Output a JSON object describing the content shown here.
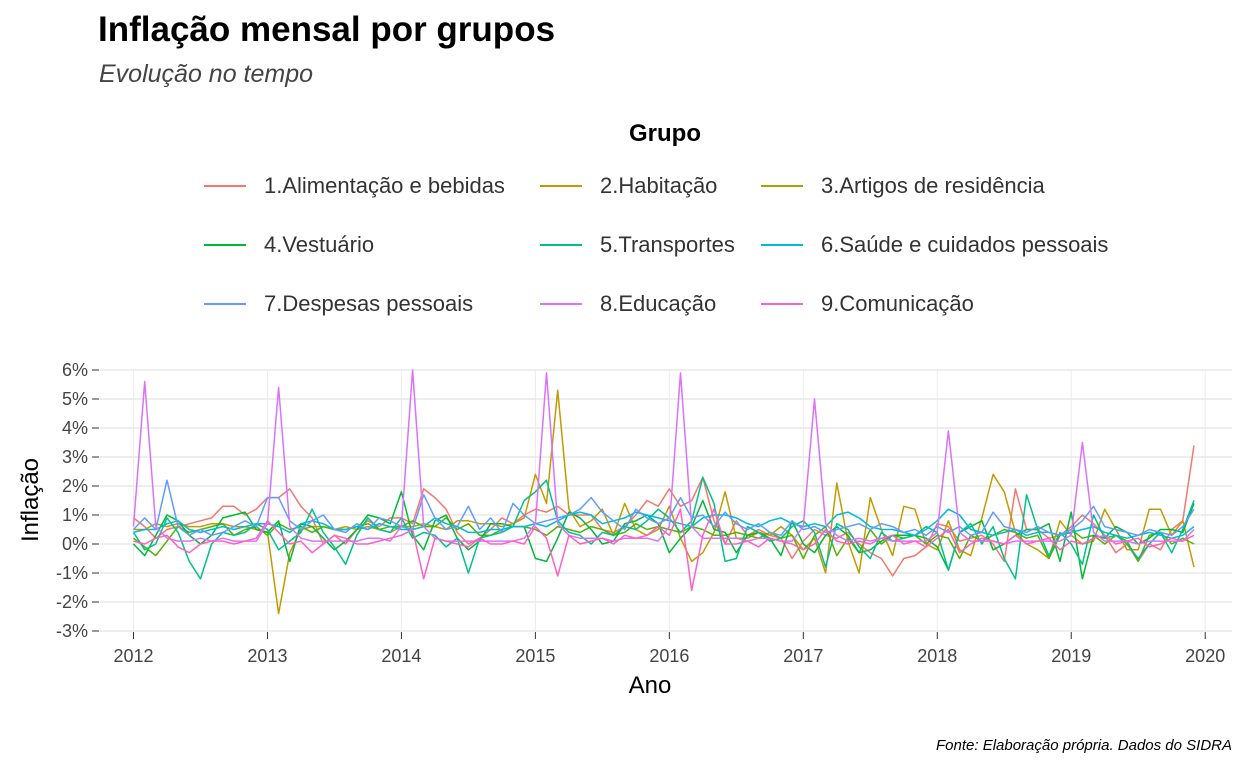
{
  "header": {
    "title": "Inflação mensal por grupos",
    "subtitle": "Evolução no tempo"
  },
  "caption": "Fonte: Elaboração própria. Dados do SIDRA",
  "chart_data": {
    "type": "line",
    "title": "Inflação mensal por grupos",
    "subtitle": "Evolução no tempo",
    "xlabel": "Ano",
    "ylabel": "Inflação",
    "legend_title": "Grupo",
    "legend_position": "top",
    "grid": true,
    "xlim": [
      2011.75,
      2020.2
    ],
    "ylim": [
      -3,
      6
    ],
    "x_ticks": [
      2012,
      2013,
      2014,
      2015,
      2016,
      2017,
      2018,
      2019,
      2020
    ],
    "x_tick_labels": [
      "2012",
      "2013",
      "2014",
      "2015",
      "2016",
      "2017",
      "2018",
      "2019",
      "2020"
    ],
    "y_ticks": [
      -3,
      -2,
      -1,
      0,
      1,
      2,
      3,
      4,
      5,
      6
    ],
    "y_tick_labels": [
      "-3%",
      "-2%",
      "-1%",
      "0%",
      "1%",
      "2%",
      "3%",
      "4%",
      "5%",
      "6%"
    ],
    "series": [
      {
        "name": "1.Alimentação e bebidas",
        "color": "#F8766D",
        "x_start": 2012.0,
        "x_step": 0.08333,
        "values": [
          0.9,
          0.6,
          0.2,
          0.5,
          0.6,
          0.7,
          0.8,
          0.9,
          1.3,
          1.3,
          1.0,
          1.2,
          1.6,
          1.6,
          1.9,
          1.3,
          0.9,
          0.0,
          0.3,
          0.0,
          0.5,
          0.8,
          0.6,
          0.9,
          0.9,
          0.7,
          1.9,
          1.6,
          1.2,
          0.4,
          0.0,
          0.2,
          0.5,
          0.9,
          0.7,
          1.0,
          1.2,
          1.1,
          1.3,
          1.0,
          1.0,
          1.0,
          0.5,
          0.4,
          0.6,
          1.0,
          1.5,
          1.3,
          1.9,
          1.3,
          1.5,
          2.3,
          0.8,
          0.0,
          0.8,
          0.3,
          0.5,
          0.3,
          0.2,
          -0.5,
          0.1,
          0.5,
          0.3,
          0.2,
          0.4,
          0.0,
          -0.3,
          -0.5,
          -1.1,
          -0.5,
          -0.4,
          -0.1,
          0.7,
          0.6,
          0.1,
          0.2,
          0.3,
          0.0,
          -0.6,
          1.9,
          0.5,
          0.5,
          0.2,
          0.3,
          0.6,
          1.0,
          0.7,
          0.3,
          -0.3,
          0.0,
          -0.6,
          0.0,
          -0.2,
          0.5,
          0.8,
          3.4
        ]
      },
      {
        "name": "2.Habitação",
        "color": "#C49A00",
        "x_start": 2012.0,
        "x_step": 0.08333,
        "values": [
          0.5,
          0.5,
          0.7,
          0.6,
          0.7,
          0.6,
          0.6,
          0.7,
          0.7,
          0.6,
          0.6,
          0.5,
          0.4,
          -2.4,
          -0.3,
          0.5,
          0.6,
          0.6,
          0.5,
          0.6,
          0.5,
          0.6,
          0.5,
          0.4,
          0.6,
          0.6,
          0.7,
          0.6,
          0.5,
          0.8,
          0.8,
          0.7,
          0.7,
          0.6,
          0.7,
          0.9,
          2.4,
          1.4,
          5.3,
          1.2,
          0.6,
          0.8,
          1.2,
          0.3,
          1.4,
          0.5,
          0.3,
          0.5,
          1.3,
          0.2,
          -0.6,
          -0.3,
          0.4,
          1.8,
          0.2,
          0.2,
          0.4,
          0.3,
          0.6,
          0.3,
          -0.2,
          0.2,
          -1.0,
          2.1,
          0.1,
          -1.0,
          1.6,
          0.5,
          -0.4,
          1.3,
          1.2,
          0.0,
          -0.2,
          0.8,
          -0.2,
          -0.4,
          0.9,
          2.4,
          1.8,
          0.4,
          0.0,
          -0.2,
          -0.5,
          0.8,
          0.3,
          0.0,
          0.1,
          1.2,
          0.5,
          -0.2,
          -0.2,
          1.2,
          1.2,
          0.3,
          0.8,
          -0.8
        ]
      },
      {
        "name": "3.Artigos de residência",
        "color": "#53B400",
        "x_start": 2012.0,
        "x_step": 0.08333,
        "values": [
          0.2,
          -0.1,
          -0.4,
          0.1,
          0.6,
          0.4,
          0.5,
          0.6,
          0.7,
          0.3,
          0.5,
          0.6,
          0.3,
          0.7,
          0.5,
          0.6,
          0.4,
          0.6,
          0.5,
          0.5,
          0.6,
          0.7,
          0.5,
          0.6,
          0.6,
          0.8,
          0.6,
          0.6,
          0.9,
          0.5,
          0.7,
          0.3,
          0.3,
          0.5,
          0.6,
          0.6,
          0.5,
          0.3,
          0.6,
          0.5,
          0.4,
          0.6,
          0.5,
          0.3,
          0.4,
          0.7,
          0.5,
          0.6,
          0.5,
          0.4,
          0.6,
          0.5,
          0.3,
          0.3,
          0.4,
          0.3,
          0.2,
          0.4,
          0.2,
          0.3,
          -0.5,
          0.3,
          0.6,
          -0.4,
          0.2,
          -0.3,
          0.5,
          0.0,
          0.3,
          0.2,
          0.3,
          0.0,
          0.3,
          0.2,
          -0.5,
          0.3,
          0.1,
          0.3,
          0.5,
          0.4,
          0.2,
          0.3,
          -0.5,
          0.3,
          0.5,
          0.2,
          0.3,
          0.0,
          0.3,
          0.1,
          -0.6,
          0.3,
          0.4,
          0.0,
          0.2,
          0.0
        ]
      },
      {
        "name": "4.Vestuário",
        "color": "#00B938",
        "x_start": 2012.0,
        "x_step": 0.08333,
        "values": [
          0.0,
          -0.4,
          0.3,
          1.0,
          0.8,
          0.3,
          0.0,
          0.3,
          0.9,
          1.0,
          1.1,
          0.5,
          0.4,
          0.8,
          -0.6,
          0.7,
          0.6,
          0.2,
          -0.2,
          0.1,
          0.5,
          1.0,
          0.9,
          0.7,
          1.8,
          0.3,
          -0.2,
          0.8,
          1.0,
          0.2,
          -0.2,
          0.1,
          0.7,
          0.7,
          0.6,
          0.6,
          -0.5,
          -0.6,
          0.2,
          1.1,
          0.9,
          0.5,
          0.0,
          0.1,
          0.7,
          0.8,
          1.0,
          0.7,
          -0.3,
          0.2,
          0.6,
          1.5,
          0.5,
          0.4,
          -0.3,
          0.3,
          0.4,
          0.2,
          -0.4,
          0.8,
          0.0,
          -0.3,
          0.3,
          0.6,
          0.3,
          -0.3,
          -0.2,
          0.1,
          0.3,
          0.3,
          0.3,
          0.2,
          -0.1,
          -0.9,
          0.4,
          0.6,
          0.8,
          -0.2,
          0.0,
          0.3,
          0.5,
          0.5,
          0.7,
          -0.6,
          1.1,
          -1.2,
          0.3,
          0.2,
          0.6,
          0.4,
          0.0,
          0.2,
          0.5,
          0.5,
          0.4,
          1.4
        ]
      },
      {
        "name": "5.Transportes",
        "color": "#00C08B",
        "x_start": 2012.0,
        "x_step": 0.08333,
        "values": [
          0.4,
          -0.2,
          0.0,
          0.9,
          0.4,
          -0.6,
          -1.2,
          0.0,
          0.4,
          0.3,
          0.4,
          0.7,
          0.5,
          -0.2,
          0.1,
          0.4,
          1.2,
          0.4,
          -0.1,
          -0.7,
          0.3,
          0.9,
          0.5,
          0.4,
          0.9,
          0.2,
          0.4,
          0.3,
          -0.1,
          0.2,
          -1.0,
          0.2,
          0.3,
          0.4,
          0.6,
          1.5,
          1.8,
          2.2,
          0.8,
          0.4,
          0.3,
          0.0,
          0.4,
          0.3,
          0.6,
          0.5,
          0.8,
          1.2,
          0.9,
          0.4,
          0.8,
          2.3,
          1.4,
          -0.6,
          -0.5,
          0.6,
          0.4,
          0.1,
          0.2,
          0.6,
          0.8,
          0.4,
          -0.8,
          0.7,
          0.5,
          -0.1,
          -0.5,
          0.4,
          0.1,
          0.2,
          0.3,
          0.6,
          0.4,
          -0.9,
          0.4,
          0.7,
          0.0,
          0.6,
          -0.5,
          -1.2,
          1.7,
          0.5,
          -0.4,
          0.4,
          0.0,
          -0.7,
          1.0,
          0.2,
          0.3,
          0.0,
          -0.5,
          0.0,
          0.4,
          -0.3,
          0.5,
          1.5
        ]
      },
      {
        "name": "6.Saúde e cuidados pessoais",
        "color": "#00BBDA",
        "x_start": 2012.0,
        "x_step": 0.08333,
        "values": [
          0.4,
          0.5,
          0.5,
          0.7,
          0.8,
          0.5,
          0.4,
          0.5,
          0.6,
          0.5,
          0.6,
          0.7,
          0.7,
          0.6,
          0.4,
          0.7,
          0.8,
          0.7,
          0.5,
          0.5,
          0.6,
          0.5,
          0.7,
          0.6,
          0.5,
          0.5,
          0.6,
          0.9,
          0.7,
          0.6,
          0.4,
          0.4,
          0.5,
          0.5,
          0.6,
          0.6,
          0.7,
          0.6,
          0.8,
          1.0,
          1.1,
          1.0,
          0.7,
          0.8,
          0.9,
          1.1,
          1.0,
          0.9,
          0.8,
          0.7,
          0.6,
          0.9,
          1.0,
          1.0,
          0.9,
          0.7,
          0.6,
          0.8,
          0.9,
          0.7,
          0.6,
          0.7,
          0.6,
          1.0,
          1.1,
          0.9,
          0.6,
          0.5,
          0.5,
          0.4,
          0.3,
          0.5,
          0.8,
          1.2,
          1.0,
          0.5,
          0.4,
          0.3,
          0.4,
          0.5,
          0.3,
          0.4,
          0.4,
          0.3,
          0.4,
          0.5,
          0.6,
          0.4,
          0.3,
          0.2,
          0.3,
          0.4,
          0.3,
          0.2,
          0.3,
          0.6
        ]
      },
      {
        "name": "7.Despesas pessoais",
        "color": "#619CFF",
        "x_start": 2012.0,
        "x_step": 0.08333,
        "values": [
          0.5,
          0.9,
          0.5,
          2.2,
          0.6,
          0.3,
          0.5,
          0.3,
          0.4,
          0.6,
          0.8,
          0.6,
          1.6,
          1.6,
          0.8,
          0.5,
          0.8,
          1.0,
          0.5,
          0.4,
          0.7,
          0.5,
          0.9,
          0.8,
          0.6,
          0.5,
          1.7,
          0.9,
          0.5,
          0.6,
          1.3,
          0.5,
          0.9,
          0.4,
          1.4,
          1.0,
          0.7,
          0.8,
          0.9,
          1.0,
          1.2,
          1.6,
          1.1,
          0.8,
          0.5,
          1.2,
          0.9,
          0.7,
          0.9,
          1.6,
          0.9,
          1.0,
          0.6,
          1.1,
          0.7,
          0.5,
          0.7,
          0.4,
          0.3,
          0.8,
          0.5,
          0.6,
          0.4,
          0.5,
          0.6,
          0.7,
          0.5,
          0.7,
          0.6,
          0.4,
          0.5,
          0.3,
          0.6,
          0.4,
          0.6,
          0.3,
          0.4,
          1.1,
          0.6,
          0.5,
          0.4,
          0.6,
          0.4,
          0.3,
          0.5,
          0.8,
          1.3,
          0.6,
          0.5,
          0.4,
          0.3,
          0.5,
          0.4,
          0.3,
          0.6,
          1.2
        ]
      },
      {
        "name": "8.Educação",
        "color": "#DB72FB",
        "x_start": 2012.0,
        "x_step": 0.08333,
        "values": [
          0.6,
          5.6,
          0.6,
          0.2,
          0.1,
          0.1,
          0.2,
          0.1,
          0.2,
          0.1,
          0.1,
          0.1,
          0.7,
          5.4,
          0.6,
          0.2,
          0.1,
          0.1,
          0.1,
          0.1,
          0.1,
          0.2,
          0.2,
          0.1,
          0.6,
          6.0,
          0.6,
          0.2,
          0.1,
          0.1,
          0.1,
          0.1,
          0.1,
          0.1,
          0.1,
          0.2,
          0.7,
          5.9,
          0.7,
          0.3,
          0.2,
          0.2,
          0.2,
          0.1,
          0.2,
          0.2,
          0.2,
          0.1,
          0.6,
          5.9,
          0.6,
          0.2,
          0.2,
          0.2,
          0.2,
          0.1,
          0.2,
          0.2,
          0.1,
          0.1,
          0.6,
          5.0,
          0.7,
          0.3,
          0.1,
          0.2,
          0.1,
          0.2,
          0.1,
          0.1,
          0.1,
          0.1,
          0.4,
          3.9,
          0.4,
          0.1,
          0.1,
          0.1,
          0.0,
          0.1,
          0.1,
          0.1,
          0.1,
          0.1,
          0.3,
          3.5,
          0.4,
          0.1,
          0.1,
          0.1,
          0.0,
          0.1,
          0.1,
          0.1,
          0.1,
          0.5
        ]
      },
      {
        "name": "9.Comunicação",
        "color": "#FF61C3",
        "x_start": 2012.0,
        "x_step": 0.08333,
        "values": [
          0.1,
          0.0,
          0.2,
          0.3,
          -0.1,
          -0.3,
          0.0,
          0.1,
          0.1,
          0.0,
          0.1,
          0.2,
          0.8,
          0.4,
          0.0,
          0.1,
          -0.3,
          0.0,
          0.3,
          0.2,
          0.0,
          0.0,
          0.1,
          0.2,
          0.3,
          0.5,
          -1.2,
          0.2,
          0.1,
          0.0,
          -0.1,
          0.2,
          0.0,
          0.0,
          0.1,
          0.0,
          0.6,
          0.2,
          -1.1,
          0.3,
          0.0,
          0.1,
          0.2,
          0.0,
          0.3,
          0.2,
          0.3,
          0.6,
          0.3,
          1.2,
          -1.6,
          0.3,
          1.2,
          0.0,
          0.0,
          0.1,
          -0.1,
          0.2,
          0.1,
          0.0,
          -0.2,
          0.0,
          0.5,
          0.1,
          0.0,
          0.1,
          0.0,
          0.2,
          0.3,
          0.0,
          0.1,
          -0.1,
          0.2,
          0.5,
          -0.3,
          0.0,
          0.2,
          0.1,
          0.0,
          0.3,
          0.0,
          0.1,
          0.2,
          -0.2,
          0.1,
          0.0,
          0.2,
          0.3,
          0.0,
          0.1,
          0.2,
          -0.1,
          0.0,
          0.2,
          0.1,
          0.3
        ]
      }
    ]
  }
}
